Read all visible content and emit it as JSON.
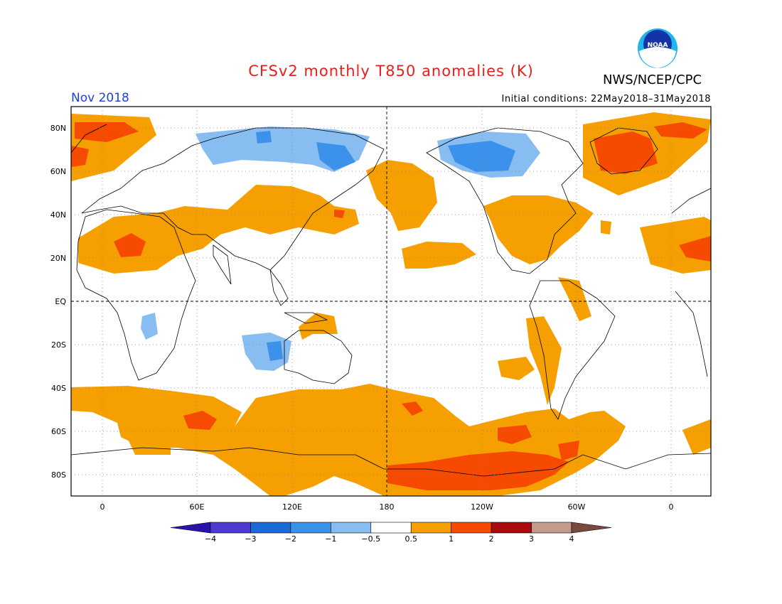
{
  "header": {
    "title": "CFSv2 monthly T850 anomalies (K)",
    "agency": "NWS/NCEP/CPC",
    "logo_text": "NOAA",
    "valid_month": "Nov 2018",
    "initial_conditions": "Initial conditions: 22May2018–31May2018"
  },
  "map": {
    "lat_labels": [
      "80N",
      "60N",
      "40N",
      "20N",
      "EQ",
      "20S",
      "40S",
      "60S",
      "80S"
    ],
    "lon_labels": [
      "0",
      "60E",
      "120E",
      "180",
      "120W",
      "60W",
      "0"
    ]
  },
  "colorbar": {
    "labels": [
      "−4",
      "−3",
      "−2",
      "−1",
      "−0.5",
      "0.5",
      "1",
      "2",
      "3",
      "4"
    ],
    "colors": [
      "#2a13a8",
      "#4d3bd0",
      "#1c6ad6",
      "#3c92ea",
      "#88bdf2",
      "#ffffff",
      "#f5a000",
      "#f54a00",
      "#a80c0c",
      "#c49a8a",
      "#7a4a40"
    ]
  }
}
